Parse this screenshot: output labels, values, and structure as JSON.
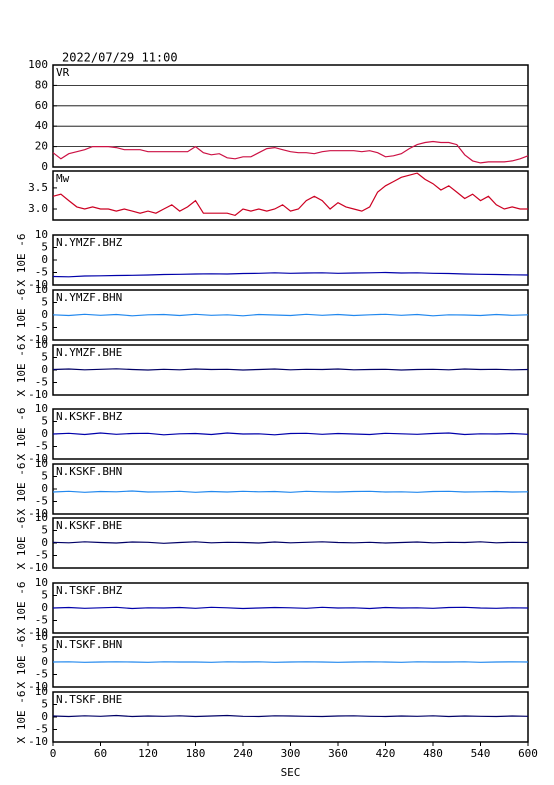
{
  "chart_data": [
    {
      "type": "line",
      "title": "2022/07/29 11:00",
      "label": "VR",
      "color": "#cc1144",
      "grid": true,
      "xlim": [
        0,
        600
      ],
      "ylim": [
        0,
        100
      ],
      "yticks": [
        0,
        20,
        40,
        60,
        80,
        100
      ],
      "x": [
        0,
        10,
        20,
        30,
        40,
        50,
        60,
        70,
        80,
        90,
        100,
        110,
        120,
        130,
        140,
        150,
        160,
        170,
        180,
        190,
        200,
        210,
        220,
        230,
        240,
        250,
        260,
        270,
        280,
        290,
        300,
        310,
        320,
        330,
        340,
        350,
        360,
        370,
        380,
        390,
        400,
        410,
        420,
        430,
        440,
        450,
        460,
        470,
        480,
        490,
        500,
        510,
        520,
        530,
        540,
        550,
        560,
        570,
        580,
        590,
        600
      ],
      "values": [
        14,
        8,
        13,
        15,
        17,
        20,
        20,
        20,
        19,
        17,
        17,
        17,
        15,
        15,
        15,
        15,
        15,
        15,
        20,
        14,
        12,
        13,
        9,
        8,
        10,
        10,
        14,
        18,
        19,
        17,
        15,
        14,
        14,
        13,
        15,
        16,
        16,
        16,
        16,
        15,
        16,
        14,
        10,
        11,
        13,
        18,
        22,
        24,
        25,
        24,
        24,
        22,
        12,
        6,
        4,
        5,
        5,
        5,
        6,
        8,
        11
      ]
    },
    {
      "type": "line",
      "label": "Mw",
      "color": "#cc0022",
      "grid": false,
      "xlim": [
        0,
        600
      ],
      "ylim": [
        2.74,
        3.9
      ],
      "yticks": [
        {
          "value": 3,
          "label": "3.0"
        },
        3.5
      ],
      "x": [
        0,
        10,
        20,
        30,
        40,
        50,
        60,
        70,
        80,
        90,
        100,
        110,
        120,
        130,
        140,
        150,
        160,
        170,
        180,
        190,
        200,
        210,
        220,
        230,
        240,
        250,
        260,
        270,
        280,
        290,
        300,
        310,
        320,
        330,
        340,
        350,
        360,
        370,
        380,
        390,
        400,
        410,
        420,
        430,
        440,
        450,
        460,
        470,
        480,
        490,
        500,
        510,
        520,
        530,
        540,
        550,
        560,
        570,
        580,
        590,
        600
      ],
      "values": [
        3.3,
        3.35,
        3.2,
        3.05,
        3.0,
        3.05,
        3.0,
        3.0,
        2.95,
        3.0,
        2.95,
        2.9,
        2.95,
        2.9,
        3.0,
        3.1,
        2.95,
        3.05,
        3.2,
        2.9,
        2.9,
        2.9,
        2.9,
        2.85,
        3.0,
        2.95,
        3.0,
        2.95,
        3.0,
        3.1,
        2.95,
        3.0,
        3.2,
        3.3,
        3.2,
        3.0,
        3.15,
        3.05,
        3.0,
        2.95,
        3.05,
        3.4,
        3.55,
        3.65,
        3.75,
        3.8,
        3.85,
        3.7,
        3.6,
        3.45,
        3.55,
        3.4,
        3.25,
        3.35,
        3.2,
        3.3,
        3.1,
        3.0,
        3.05,
        3.0,
        3.0
      ]
    },
    {
      "type": "line",
      "label": "N.YMZF.BHZ",
      "ylabel": "X 10E -6",
      "color": "#0000aa",
      "xlim": [
        0,
        600
      ],
      "ylim": [
        -10,
        10
      ],
      "yticks": [
        -10,
        -5,
        0,
        5,
        10
      ],
      "x": [
        0,
        20,
        40,
        60,
        80,
        100,
        120,
        140,
        160,
        180,
        200,
        220,
        240,
        260,
        280,
        300,
        320,
        340,
        360,
        380,
        400,
        420,
        440,
        460,
        480,
        500,
        520,
        540,
        560,
        580,
        600
      ],
      "values": [
        -6.6,
        -6.7,
        -6.4,
        -6.3,
        -6.2,
        -6.1,
        -6.0,
        -5.8,
        -5.7,
        -5.6,
        -5.5,
        -5.6,
        -5.4,
        -5.3,
        -5.1,
        -5.3,
        -5.2,
        -5.1,
        -5.3,
        -5.2,
        -5.1,
        -5.0,
        -5.2,
        -5.1,
        -5.3,
        -5.4,
        -5.6,
        -5.7,
        -5.8,
        -5.9,
        -6.0
      ]
    },
    {
      "type": "line",
      "label": "N.YMZF.BHN",
      "ylabel": "X 10E -6",
      "color": "#2288ee",
      "xlim": [
        0,
        600
      ],
      "ylim": [
        -10,
        10
      ],
      "yticks": [
        -10,
        -5,
        0,
        5,
        10
      ],
      "x": [
        0,
        20,
        40,
        60,
        80,
        100,
        120,
        140,
        160,
        180,
        200,
        220,
        240,
        260,
        280,
        300,
        320,
        340,
        360,
        380,
        400,
        420,
        440,
        460,
        480,
        500,
        520,
        540,
        560,
        580,
        600
      ],
      "values": [
        0.1,
        -0.2,
        0.3,
        -0.1,
        0.2,
        -0.3,
        0.1,
        0.2,
        -0.2,
        0.3,
        -0.1,
        0.1,
        -0.3,
        0.2,
        0.0,
        -0.2,
        0.3,
        -0.1,
        0.2,
        -0.2,
        0.1,
        0.3,
        -0.1,
        0.2,
        -0.3,
        0.1,
        0.0,
        -0.2,
        0.2,
        -0.1,
        0.1
      ]
    },
    {
      "type": "line",
      "label": "N.YMZF.BHE",
      "ylabel": "X 10E -6",
      "color": "#000066",
      "xlim": [
        0,
        600
      ],
      "ylim": [
        -10,
        10
      ],
      "yticks": [
        -10,
        -5,
        0,
        5,
        10
      ],
      "x": [
        0,
        20,
        40,
        60,
        80,
        100,
        120,
        140,
        160,
        180,
        200,
        220,
        240,
        260,
        280,
        300,
        320,
        340,
        360,
        380,
        400,
        420,
        440,
        460,
        480,
        500,
        520,
        540,
        560,
        580,
        600
      ],
      "values": [
        0.2,
        0.4,
        0.1,
        0.3,
        0.5,
        0.2,
        0.0,
        0.3,
        0.1,
        0.4,
        0.2,
        0.3,
        0.0,
        0.2,
        0.4,
        0.1,
        0.3,
        0.2,
        0.4,
        0.1,
        0.2,
        0.3,
        0.0,
        0.2,
        0.3,
        0.1,
        0.4,
        0.2,
        0.3,
        0.1,
        0.2
      ]
    },
    {
      "type": "line",
      "label": "N.KSKF.BHZ",
      "ylabel": "X 10E -6",
      "color": "#0000aa",
      "xlim": [
        0,
        600
      ],
      "ylim": [
        -10,
        10
      ],
      "yticks": [
        -10,
        -5,
        0,
        5,
        10
      ],
      "x": [
        0,
        20,
        40,
        60,
        80,
        100,
        120,
        140,
        160,
        180,
        200,
        220,
        240,
        260,
        280,
        300,
        320,
        340,
        360,
        380,
        400,
        420,
        440,
        460,
        480,
        500,
        520,
        540,
        560,
        580,
        600
      ],
      "values": [
        0.0,
        0.3,
        -0.2,
        0.4,
        -0.1,
        0.2,
        0.3,
        -0.3,
        0.1,
        0.2,
        -0.2,
        0.4,
        0.0,
        0.1,
        -0.3,
        0.2,
        0.3,
        -0.1,
        0.2,
        0.0,
        -0.2,
        0.3,
        0.1,
        -0.1,
        0.2,
        0.4,
        -0.2,
        0.1,
        0.0,
        0.2,
        -0.1
      ]
    },
    {
      "type": "line",
      "label": "N.KSKF.BHN",
      "ylabel": "X 10E -6",
      "color": "#2288ee",
      "xlim": [
        0,
        600
      ],
      "ylim": [
        -10,
        10
      ],
      "yticks": [
        -10,
        -5,
        0,
        5,
        10
      ],
      "x": [
        0,
        20,
        40,
        60,
        80,
        100,
        120,
        140,
        160,
        180,
        200,
        220,
        240,
        260,
        280,
        300,
        320,
        340,
        360,
        380,
        400,
        420,
        440,
        460,
        480,
        500,
        520,
        540,
        560,
        580,
        600
      ],
      "values": [
        -1.2,
        -0.9,
        -1.3,
        -1.0,
        -1.1,
        -0.8,
        -1.2,
        -1.1,
        -0.9,
        -1.3,
        -1.0,
        -1.2,
        -0.9,
        -1.1,
        -1.0,
        -1.3,
        -0.9,
        -1.1,
        -1.2,
        -1.0,
        -0.9,
        -1.2,
        -1.1,
        -1.3,
        -1.0,
        -0.9,
        -1.2,
        -1.1,
        -1.0,
        -1.2,
        -1.1
      ]
    },
    {
      "type": "line",
      "label": "N.KSKF.BHE",
      "ylabel": "X 10E -6",
      "color": "#000066",
      "xlim": [
        0,
        600
      ],
      "ylim": [
        -10,
        10
      ],
      "yticks": [
        -10,
        -5,
        0,
        5,
        10
      ],
      "x": [
        0,
        20,
        40,
        60,
        80,
        100,
        120,
        140,
        160,
        180,
        200,
        220,
        240,
        260,
        280,
        300,
        320,
        340,
        360,
        380,
        400,
        420,
        440,
        460,
        480,
        500,
        520,
        540,
        560,
        580,
        600
      ],
      "values": [
        0.3,
        0.1,
        0.5,
        0.2,
        0.0,
        0.4,
        0.3,
        -0.1,
        0.2,
        0.5,
        0.1,
        0.3,
        0.2,
        0.0,
        0.4,
        0.1,
        0.3,
        0.5,
        0.2,
        0.1,
        0.3,
        0.0,
        0.2,
        0.4,
        0.1,
        0.3,
        0.2,
        0.5,
        0.1,
        0.3,
        0.2
      ]
    },
    {
      "type": "line",
      "label": "N.TSKF.BHZ",
      "ylabel": "X 10E -6",
      "color": "#0000aa",
      "xlim": [
        0,
        600
      ],
      "ylim": [
        -10,
        10
      ],
      "yticks": [
        -10,
        -5,
        0,
        5,
        10
      ],
      "x": [
        0,
        20,
        40,
        60,
        80,
        100,
        120,
        140,
        160,
        180,
        200,
        220,
        240,
        260,
        280,
        300,
        320,
        340,
        360,
        380,
        400,
        420,
        440,
        460,
        480,
        500,
        520,
        540,
        560,
        580,
        600
      ],
      "values": [
        0.0,
        0.2,
        -0.1,
        0.1,
        0.3,
        -0.2,
        0.1,
        0.0,
        0.2,
        -0.1,
        0.3,
        0.1,
        -0.2,
        0.0,
        0.2,
        0.1,
        -0.1,
        0.3,
        0.0,
        0.1,
        -0.2,
        0.2,
        0.0,
        0.1,
        -0.1,
        0.2,
        0.3,
        0.0,
        -0.1,
        0.1,
        0.0
      ]
    },
    {
      "type": "line",
      "label": "N.TSKF.BHN",
      "ylabel": "X 10E -6",
      "color": "#2288ee",
      "xlim": [
        0,
        600
      ],
      "ylim": [
        -10,
        10
      ],
      "yticks": [
        -10,
        -5,
        0,
        5,
        10
      ],
      "x": [
        0,
        20,
        40,
        60,
        80,
        100,
        120,
        140,
        160,
        180,
        200,
        220,
        240,
        260,
        280,
        300,
        320,
        340,
        360,
        380,
        400,
        420,
        440,
        460,
        480,
        500,
        520,
        540,
        560,
        580,
        600
      ],
      "values": [
        0.0,
        0.1,
        -0.1,
        0.0,
        0.1,
        0.0,
        -0.1,
        0.1,
        0.0,
        0.0,
        -0.1,
        0.1,
        0.0,
        0.1,
        -0.1,
        0.0,
        0.1,
        0.0,
        -0.1,
        0.0,
        0.1,
        0.0,
        -0.1,
        0.1,
        0.0,
        0.0,
        0.1,
        -0.1,
        0.0,
        0.1,
        0.0
      ]
    },
    {
      "type": "line",
      "label": "N.TSKF.BHE",
      "ylabel": "X 10E -6",
      "color": "#000066",
      "xlim": [
        0,
        600
      ],
      "ylim": [
        -10,
        10
      ],
      "yticks": [
        -10,
        -5,
        0,
        5,
        10
      ],
      "xticks": [
        0,
        60,
        120,
        180,
        240,
        300,
        360,
        420,
        480,
        540,
        600
      ],
      "xlabel": "SEC",
      "x": [
        0,
        20,
        40,
        60,
        80,
        100,
        120,
        140,
        160,
        180,
        200,
        220,
        240,
        260,
        280,
        300,
        320,
        340,
        360,
        380,
        400,
        420,
        440,
        460,
        480,
        500,
        520,
        540,
        560,
        580,
        600
      ],
      "values": [
        0.4,
        0.2,
        0.5,
        0.3,
        0.6,
        0.2,
        0.4,
        0.3,
        0.5,
        0.2,
        0.4,
        0.6,
        0.3,
        0.2,
        0.5,
        0.4,
        0.3,
        0.2,
        0.4,
        0.5,
        0.3,
        0.2,
        0.4,
        0.3,
        0.5,
        0.2,
        0.4,
        0.3,
        0.2,
        0.4,
        0.3
      ]
    }
  ]
}
